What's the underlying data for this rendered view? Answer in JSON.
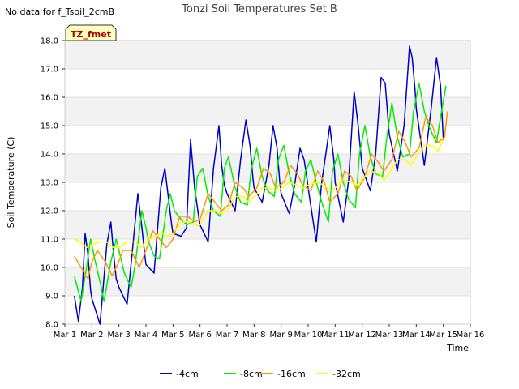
{
  "chart_data": {
    "type": "line",
    "title": "Tonzi Soil Temperatures Set B",
    "xlabel": "Time",
    "ylabel": "Soil Temperature (C)",
    "ylim": [
      8.0,
      18.0
    ],
    "xlim": [
      1,
      16
    ],
    "y_ticks": [
      "8.0",
      "9.0",
      "10.0",
      "11.0",
      "12.0",
      "13.0",
      "14.0",
      "15.0",
      "16.0",
      "17.0",
      "18.0"
    ],
    "x_ticks": [
      "Mar 1",
      "Mar 2",
      "Mar 3",
      "Mar 4",
      "Mar 5",
      "Mar 6",
      "Mar 7",
      "Mar 8",
      "Mar 9",
      "Mar 10",
      "Mar 11",
      "Mar 12",
      "Mar 13",
      "Mar 14",
      "Mar 15",
      "Mar 16"
    ],
    "grid": "horizontal bands",
    "legend_placement": "bottom",
    "series": [
      {
        "name": "-4cm",
        "color": "#0000cc",
        "x": [
          1.35,
          1.5,
          1.65,
          1.75,
          1.85,
          1.95,
          2.0,
          2.3,
          2.55,
          2.7,
          2.8,
          2.9,
          3.0,
          3.3,
          3.5,
          3.7,
          3.85,
          3.95,
          4.0,
          4.3,
          4.55,
          4.7,
          4.85,
          4.95,
          5.0,
          5.3,
          5.5,
          5.65,
          5.8,
          5.95,
          6.0,
          6.3,
          6.5,
          6.7,
          6.8,
          6.9,
          7.0,
          7.3,
          7.5,
          7.7,
          7.85,
          7.95,
          8.0,
          8.3,
          8.55,
          8.7,
          8.85,
          8.95,
          9.0,
          9.3,
          9.5,
          9.7,
          9.85,
          9.95,
          10.0,
          10.3,
          10.5,
          10.7,
          10.8,
          10.95,
          11.0,
          11.3,
          11.5,
          11.7,
          11.85,
          11.95,
          12.0,
          12.3,
          12.5,
          12.7,
          12.85,
          12.95,
          13.0,
          13.3,
          13.55,
          13.75,
          13.85,
          13.95,
          14.0,
          14.3,
          14.55,
          14.75,
          14.9,
          15.0
        ],
        "y": [
          9.0,
          8.1,
          9.3,
          11.2,
          10.5,
          9.2,
          8.9,
          8.0,
          10.8,
          11.6,
          10.5,
          9.6,
          9.3,
          8.7,
          10.6,
          12.6,
          11.4,
          10.5,
          10.1,
          9.8,
          12.8,
          13.5,
          12.3,
          11.5,
          11.2,
          11.1,
          11.4,
          14.5,
          12.8,
          11.8,
          11.5,
          10.9,
          13.5,
          15.0,
          13.6,
          12.9,
          12.6,
          12.0,
          13.8,
          15.2,
          14.3,
          13.2,
          12.8,
          12.3,
          13.6,
          15.0,
          14.2,
          13.0,
          12.6,
          11.9,
          12.9,
          14.2,
          13.8,
          13.2,
          12.8,
          10.9,
          13.0,
          14.3,
          15.0,
          13.8,
          13.0,
          11.6,
          13.1,
          16.2,
          15.0,
          14.0,
          13.5,
          12.7,
          14.0,
          16.7,
          16.5,
          15.3,
          14.7,
          13.4,
          15.0,
          17.8,
          17.4,
          16.3,
          15.6,
          13.6,
          15.6,
          17.4,
          16.4,
          14.5
        ]
      },
      {
        "name": "-8cm",
        "color": "#00ee00",
        "x": [
          1.35,
          1.6,
          1.8,
          1.95,
          2.1,
          2.3,
          2.45,
          2.7,
          2.9,
          3.0,
          3.2,
          3.45,
          3.6,
          3.85,
          4.0,
          4.1,
          4.3,
          4.5,
          4.75,
          4.9,
          5.05,
          5.3,
          5.5,
          5.75,
          5.9,
          6.1,
          6.3,
          6.5,
          6.75,
          6.9,
          7.05,
          7.3,
          7.5,
          7.75,
          7.9,
          8.1,
          8.3,
          8.5,
          8.75,
          8.9,
          9.1,
          9.3,
          9.5,
          9.75,
          9.9,
          10.1,
          10.3,
          10.5,
          10.75,
          10.9,
          11.1,
          11.3,
          11.5,
          11.75,
          11.9,
          12.1,
          12.3,
          12.5,
          12.75,
          12.9,
          13.1,
          13.3,
          13.5,
          13.75,
          13.9,
          14.1,
          14.3,
          14.5,
          14.75,
          14.9,
          15.1
        ],
        "y": [
          9.7,
          8.8,
          10.0,
          11.0,
          10.3,
          9.5,
          8.8,
          10.2,
          11.0,
          10.6,
          9.8,
          9.3,
          10.1,
          12.0,
          11.4,
          10.9,
          10.4,
          10.3,
          12.0,
          12.6,
          12.0,
          11.7,
          11.5,
          11.6,
          13.2,
          13.5,
          12.5,
          12.0,
          11.8,
          13.5,
          13.9,
          12.8,
          12.3,
          12.2,
          13.5,
          14.2,
          13.2,
          12.7,
          12.5,
          13.8,
          14.3,
          13.3,
          12.6,
          12.3,
          13.4,
          13.8,
          13.0,
          12.3,
          11.6,
          13.4,
          14.0,
          13.0,
          12.4,
          12.1,
          14.0,
          15.0,
          13.9,
          13.3,
          13.2,
          14.5,
          15.8,
          14.6,
          13.9,
          14.0,
          15.5,
          16.5,
          15.5,
          14.9,
          14.4,
          15.3,
          16.4
        ]
      },
      {
        "name": "-16cm",
        "color": "#ff9900",
        "x": [
          1.35,
          1.6,
          1.85,
          2.0,
          2.2,
          2.5,
          2.75,
          2.95,
          3.15,
          3.45,
          3.75,
          4.0,
          4.25,
          4.5,
          4.75,
          5.0,
          5.25,
          5.55,
          5.8,
          6.0,
          6.3,
          6.55,
          6.8,
          7.05,
          7.3,
          7.6,
          7.8,
          8.1,
          8.35,
          8.6,
          8.8,
          9.1,
          9.35,
          9.6,
          9.8,
          10.1,
          10.35,
          10.6,
          10.8,
          11.1,
          11.35,
          11.6,
          11.8,
          12.1,
          12.35,
          12.6,
          12.8,
          13.1,
          13.35,
          13.6,
          13.8,
          14.1,
          14.35,
          14.6,
          14.8,
          15.05,
          15.15
        ],
        "y": [
          10.4,
          10.0,
          9.6,
          10.2,
          10.6,
          10.2,
          9.7,
          10.1,
          10.6,
          10.6,
          10.0,
          10.6,
          11.3,
          11.0,
          10.7,
          11.0,
          11.8,
          11.8,
          11.6,
          11.7,
          12.6,
          12.3,
          12.0,
          12.2,
          13.0,
          12.8,
          12.5,
          12.8,
          13.5,
          13.3,
          12.8,
          13.0,
          13.6,
          13.3,
          12.9,
          12.7,
          13.4,
          13.0,
          12.3,
          12.6,
          13.4,
          13.2,
          12.7,
          13.2,
          14.0,
          13.7,
          13.4,
          13.8,
          14.8,
          14.4,
          13.9,
          14.2,
          15.3,
          15.0,
          14.4,
          14.6,
          15.5
        ]
      },
      {
        "name": "-32cm",
        "color": "#ffff00",
        "x": [
          1.35,
          1.6,
          1.8,
          2.0,
          2.3,
          2.55,
          2.8,
          3.0,
          3.3,
          3.6,
          3.8,
          4.0,
          4.3,
          4.6,
          4.8,
          5.0,
          5.3,
          5.6,
          5.8,
          6.0,
          6.3,
          6.6,
          6.8,
          7.0,
          7.3,
          7.6,
          7.8,
          8.0,
          8.3,
          8.6,
          8.8,
          9.0,
          9.3,
          9.6,
          9.8,
          10.0,
          10.3,
          10.6,
          10.8,
          11.0,
          11.3,
          11.6,
          11.8,
          12.0,
          12.3,
          12.6,
          12.8,
          13.0,
          13.3,
          13.6,
          13.8,
          14.0,
          14.3,
          14.6,
          14.8,
          15.0
        ],
        "y": [
          11.0,
          10.9,
          10.7,
          10.8,
          10.9,
          10.9,
          10.7,
          10.7,
          10.9,
          10.9,
          10.7,
          10.9,
          11.1,
          11.2,
          11.1,
          11.2,
          11.6,
          11.6,
          11.5,
          11.5,
          12.0,
          12.0,
          11.9,
          12.0,
          12.5,
          12.5,
          12.3,
          12.5,
          12.8,
          12.8,
          12.7,
          12.8,
          13.0,
          12.9,
          12.8,
          12.9,
          13.0,
          12.9,
          12.7,
          12.8,
          13.1,
          13.0,
          12.9,
          13.1,
          13.4,
          13.3,
          13.1,
          13.3,
          13.8,
          13.8,
          13.6,
          13.9,
          14.3,
          14.3,
          14.1,
          14.5
        ]
      }
    ]
  },
  "nodata_text": "No data for f_Tsoil_2cmB",
  "legend_box_label": "TZ_fmet"
}
